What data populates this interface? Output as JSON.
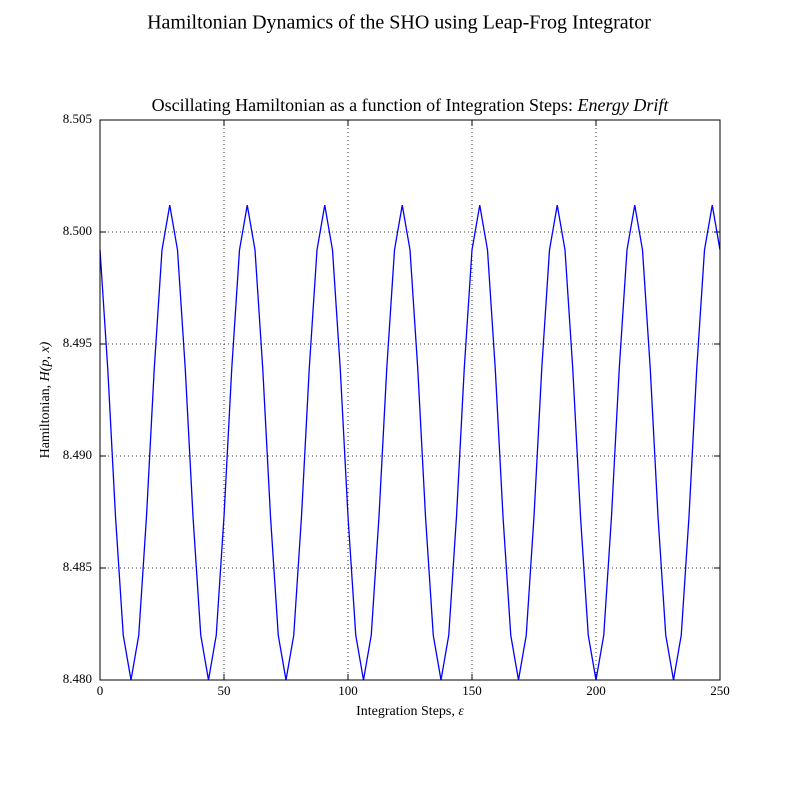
{
  "chart_data": {
    "type": "line",
    "suptitle": "Hamiltonian Dynamics of the SHO using Leap-Frog Integrator",
    "title": "Oscillating Hamiltonian as a function of Integration Steps:",
    "title_emphasis": "Energy Drift",
    "x_label": "Integration Steps, ",
    "x_label_symbol": "ε",
    "y_label": "Hamiltonian, ",
    "y_label_symbol": "H(p, x)",
    "x": [
      0,
      3.125,
      6.25,
      9.375,
      12.5,
      15.625,
      18.75,
      21.875,
      25,
      28.125,
      31.25,
      34.375,
      37.5,
      40.625,
      43.75,
      46.875,
      50,
      53.125,
      56.25,
      59.375,
      62.5,
      65.625,
      68.75,
      71.875,
      75,
      78.125,
      81.25,
      84.375,
      87.5,
      90.625,
      93.75,
      96.875,
      100,
      103.125,
      106.25,
      109.375,
      112.5,
      115.625,
      118.75,
      121.875,
      125,
      128.125,
      131.25,
      134.375,
      137.5,
      140.625,
      143.75,
      146.875,
      150,
      153.125,
      156.25,
      159.375,
      162.5,
      165.625,
      168.75,
      171.875,
      175,
      178.125,
      181.25,
      184.375,
      187.5,
      190.625,
      193.75,
      196.875,
      200,
      203.125,
      206.25,
      209.375,
      212.5,
      215.625,
      218.75,
      221.875,
      225,
      228.125,
      231.25,
      234.375,
      237.5,
      240.625,
      243.75,
      246.875,
      250
    ],
    "series": [
      {
        "color": "#0000ff",
        "values": [
          8.4992,
          8.4939,
          8.4873,
          8.482,
          8.48,
          8.482,
          8.4873,
          8.4939,
          8.4992,
          8.5012,
          8.4992,
          8.4939,
          8.4873,
          8.482,
          8.48,
          8.482,
          8.4873,
          8.4939,
          8.4992,
          8.5012,
          8.4992,
          8.4939,
          8.4873,
          8.482,
          8.48,
          8.482,
          8.4873,
          8.4939,
          8.4992,
          8.5012,
          8.4992,
          8.4939,
          8.4873,
          8.482,
          8.48,
          8.482,
          8.4873,
          8.4939,
          8.4992,
          8.5012,
          8.4992,
          8.4939,
          8.4873,
          8.482,
          8.48,
          8.482,
          8.4873,
          8.4939,
          8.4992,
          8.5012,
          8.4992,
          8.4939,
          8.4873,
          8.482,
          8.48,
          8.482,
          8.4873,
          8.4939,
          8.4992,
          8.5012,
          8.4992,
          8.4939,
          8.4873,
          8.482,
          8.48,
          8.482,
          8.4873,
          8.4939,
          8.4992,
          8.5012,
          8.4992,
          8.4939,
          8.4873,
          8.482,
          8.48,
          8.482,
          8.4873,
          8.4939,
          8.4992,
          8.5012,
          8.4992
        ]
      }
    ],
    "xlim": [
      0,
      250
    ],
    "xticks": [
      0,
      50,
      100,
      150,
      200,
      250
    ],
    "ylim": [
      8.48,
      8.505
    ],
    "yticks": [
      {
        "value": 8.48,
        "label": "8.480"
      },
      {
        "value": 8.485,
        "label": "8.485"
      },
      {
        "value": 8.49,
        "label": "8.490"
      },
      {
        "value": 8.495,
        "label": "8.495"
      },
      {
        "value": 8.5,
        "label": "8.500"
      },
      {
        "value": 8.505,
        "label": "8.505"
      }
    ],
    "grid": true
  }
}
